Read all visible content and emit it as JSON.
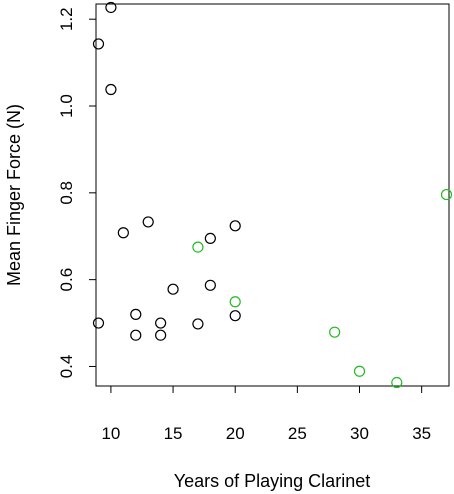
{
  "chart_data": {
    "type": "scatter",
    "title": "",
    "xlabel": "Years of Playing Clarinet",
    "ylabel": "Mean Finger Force (N)",
    "xlim": [
      8.8,
      37.2
    ],
    "ylim": [
      0.355,
      1.235
    ],
    "xticks": [
      10,
      15,
      20,
      25,
      30,
      35
    ],
    "yticks": [
      0.4,
      0.6,
      0.8,
      1.0,
      1.2
    ],
    "ytick_labels": [
      "0.4",
      "0.6",
      "0.8",
      "1.0",
      "1.2"
    ],
    "box": true,
    "series": [
      {
        "color": "#000000",
        "points": [
          {
            "x": 10,
            "y": 1.227
          },
          {
            "x": 9,
            "y": 1.143
          },
          {
            "x": 10,
            "y": 1.038
          },
          {
            "x": 11,
            "y": 0.708
          },
          {
            "x": 13,
            "y": 0.733
          },
          {
            "x": 20,
            "y": 0.724
          },
          {
            "x": 18,
            "y": 0.695
          },
          {
            "x": 15,
            "y": 0.578
          },
          {
            "x": 18,
            "y": 0.587
          },
          {
            "x": 12,
            "y": 0.52
          },
          {
            "x": 20,
            "y": 0.517
          },
          {
            "x": 9,
            "y": 0.5
          },
          {
            "x": 14,
            "y": 0.5
          },
          {
            "x": 17,
            "y": 0.498
          },
          {
            "x": 12,
            "y": 0.472
          },
          {
            "x": 14,
            "y": 0.472
          }
        ]
      },
      {
        "color": "#22bb22",
        "points": [
          {
            "x": 17,
            "y": 0.675
          },
          {
            "x": 20,
            "y": 0.549
          },
          {
            "x": 28,
            "y": 0.479
          },
          {
            "x": 30,
            "y": 0.389
          },
          {
            "x": 33,
            "y": 0.363
          },
          {
            "x": 37,
            "y": 0.796
          }
        ]
      }
    ]
  }
}
